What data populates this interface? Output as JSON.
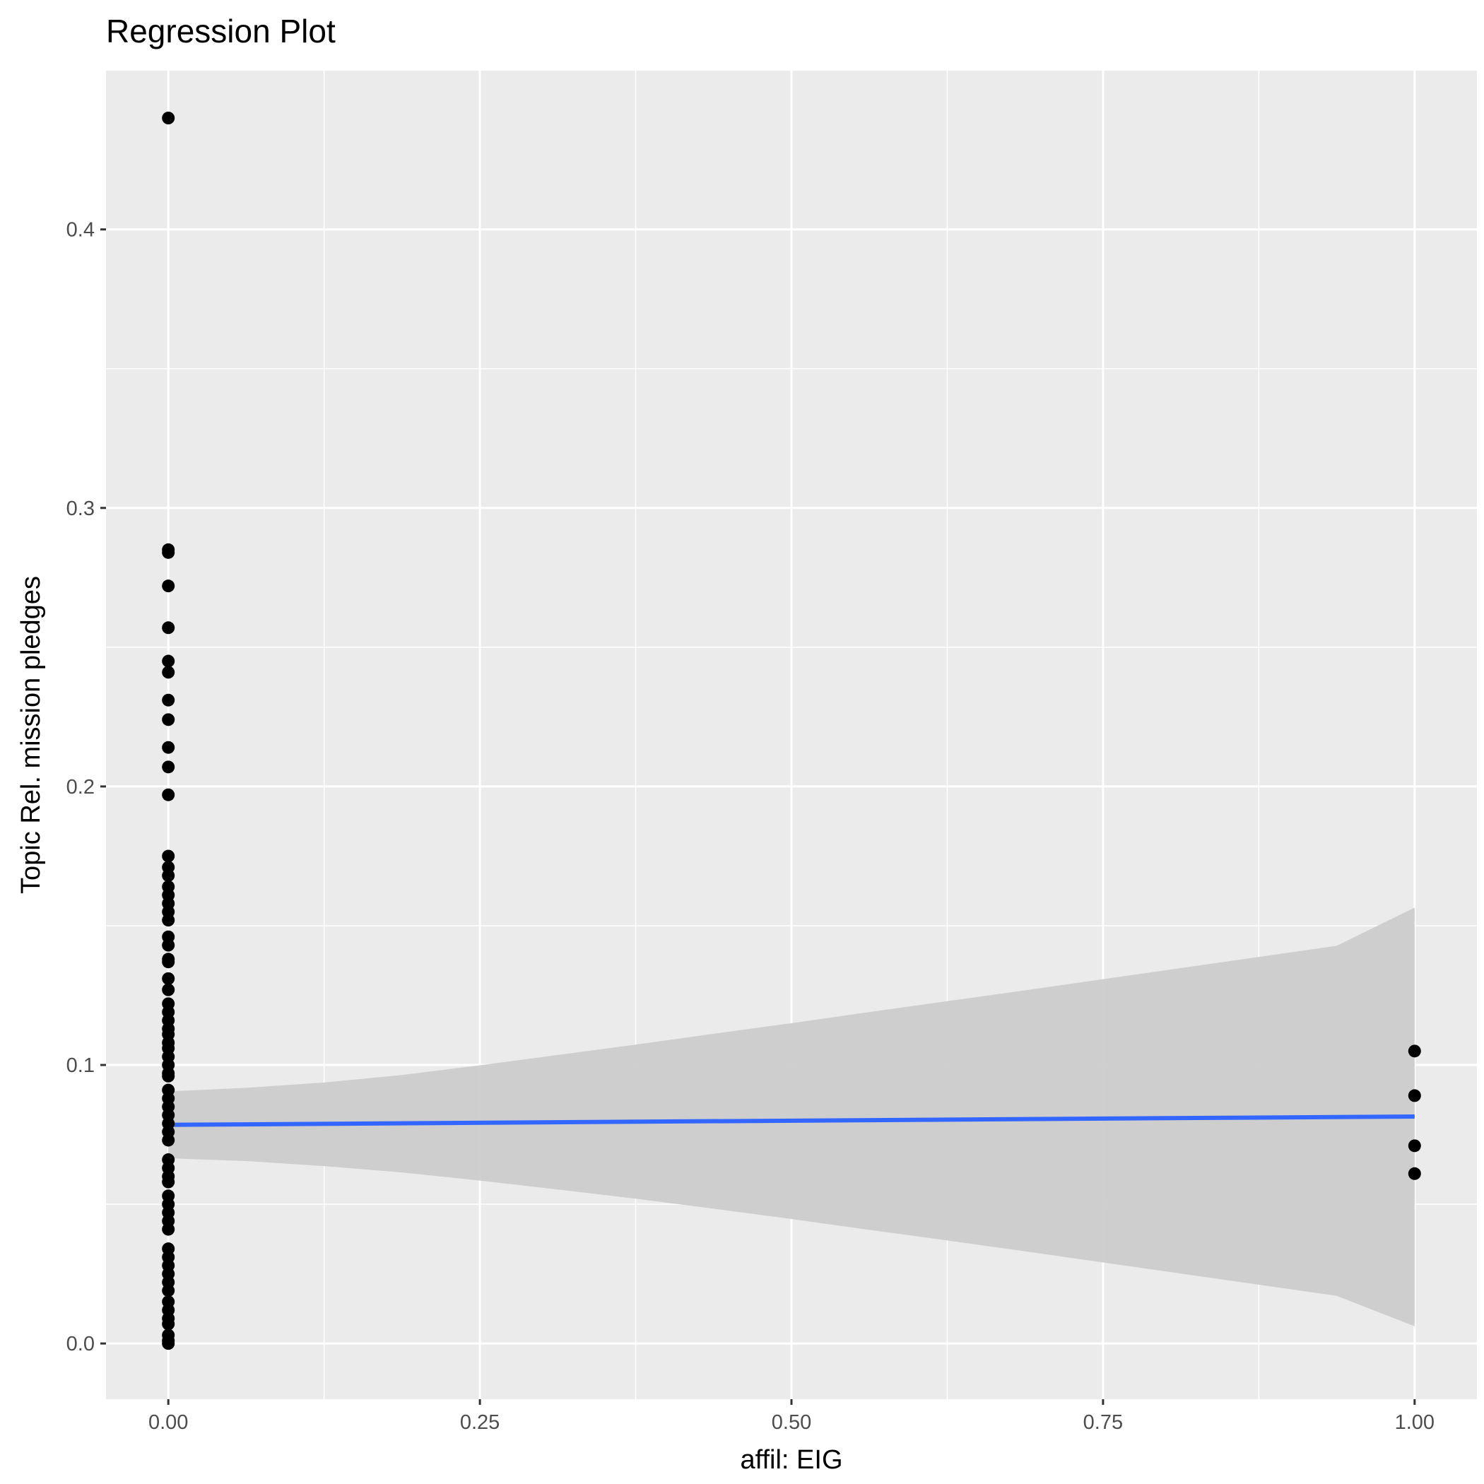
{
  "chart_data": {
    "type": "scatter",
    "title": "Regression Plot",
    "xlabel": "affil: EIG",
    "ylabel": "Topic Rel. mission pledges",
    "xlim": [
      -0.05,
      1.05
    ],
    "ylim": [
      -0.02,
      0.457
    ],
    "x_ticks": [
      {
        "value": 0.0,
        "label": "0.00"
      },
      {
        "value": 0.25,
        "label": "0.25"
      },
      {
        "value": 0.5,
        "label": "0.50"
      },
      {
        "value": 0.75,
        "label": "0.75"
      },
      {
        "value": 1.0,
        "label": "1.00"
      }
    ],
    "y_ticks": [
      {
        "value": 0.0,
        "label": "0.0"
      },
      {
        "value": 0.1,
        "label": "0.1"
      },
      {
        "value": 0.2,
        "label": "0.2"
      },
      {
        "value": 0.3,
        "label": "0.3"
      },
      {
        "value": 0.4,
        "label": "0.4"
      }
    ],
    "x_minor": [
      0.125,
      0.375,
      0.625,
      0.875
    ],
    "y_minor": [
      0.05,
      0.15,
      0.25,
      0.35
    ],
    "grid": true,
    "points": {
      "x0": [
        0.44,
        0.285,
        0.284,
        0.272,
        0.257,
        0.245,
        0.241,
        0.231,
        0.224,
        0.214,
        0.207,
        0.197,
        0.175,
        0.171,
        0.168,
        0.164,
        0.161,
        0.158,
        0.155,
        0.152,
        0.146,
        0.143,
        0.138,
        0.137,
        0.131,
        0.127,
        0.122,
        0.119,
        0.116,
        0.113,
        0.111,
        0.108,
        0.106,
        0.103,
        0.1,
        0.097,
        0.096,
        0.091,
        0.088,
        0.085,
        0.082,
        0.079,
        0.076,
        0.073,
        0.066,
        0.063,
        0.06,
        0.058,
        0.053,
        0.05,
        0.047,
        0.044,
        0.041,
        0.034,
        0.031,
        0.028,
        0.025,
        0.022,
        0.019,
        0.015,
        0.012,
        0.009,
        0.007,
        0.003,
        0.001,
        0.0
      ],
      "x1": [
        0.105,
        0.089,
        0.071,
        0.061
      ]
    },
    "regression": {
      "x": [
        0.0,
        1.0
      ],
      "y": [
        0.0785,
        0.0815
      ]
    },
    "ribbon": {
      "x": [
        0.0,
        0.0625,
        0.125,
        0.1875,
        0.25,
        0.3125,
        0.375,
        0.4375,
        0.5,
        0.5625,
        0.625,
        0.6875,
        0.75,
        0.8125,
        0.875,
        0.9375,
        1.0
      ],
      "lower": [
        0.0665,
        0.0655,
        0.0637,
        0.0614,
        0.0585,
        0.0553,
        0.052,
        0.0484,
        0.0447,
        0.0408,
        0.037,
        0.0331,
        0.0291,
        0.0251,
        0.0211,
        0.0171,
        0.0062
      ],
      "upper": [
        0.0905,
        0.0918,
        0.0937,
        0.0964,
        0.0999,
        0.1036,
        0.1073,
        0.1112,
        0.115,
        0.119,
        0.1229,
        0.1268,
        0.1308,
        0.1348,
        0.1388,
        0.1428,
        0.1565
      ]
    },
    "colors": {
      "panel": "#ebebeb",
      "grid": "#ffffff",
      "ribbon": "#cccccc",
      "line": "#3366ff",
      "point": "#000000"
    }
  }
}
